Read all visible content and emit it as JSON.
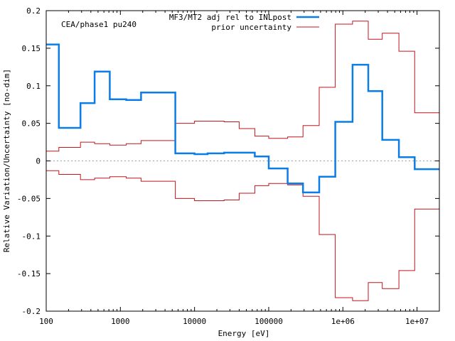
{
  "chart_data": {
    "type": "line",
    "step": true,
    "annotation": "CEA/phase1 pu240",
    "xlabel": "Energy [eV]",
    "ylabel": "Relative Variation/Uncertainty [no-dim]",
    "x_scale": "log",
    "xlim": [
      100,
      20000000
    ],
    "ylim": [
      -0.2,
      0.2
    ],
    "xticks": [
      {
        "value": 100,
        "label": "100"
      },
      {
        "value": 1000,
        "label": "1000"
      },
      {
        "value": 10000,
        "label": "10000"
      },
      {
        "value": 100000,
        "label": "100000"
      },
      {
        "value": 1000000,
        "label": "1e+06"
      },
      {
        "value": 10000000,
        "label": "1e+07"
      }
    ],
    "yticks": [
      {
        "value": 0.2,
        "label": "0.2"
      },
      {
        "value": 0.15,
        "label": "0.15"
      },
      {
        "value": 0.1,
        "label": "0.1"
      },
      {
        "value": 0.05,
        "label": "0.05"
      },
      {
        "value": 0,
        "label": "0"
      },
      {
        "value": -0.05,
        "label": "-0.05"
      },
      {
        "value": -0.1,
        "label": "-0.1"
      },
      {
        "value": -0.15,
        "label": "-0.15"
      },
      {
        "value": -0.2,
        "label": "-0.2"
      }
    ],
    "zero_line": true,
    "legend_position": "top-right",
    "bin_edges": [
      100,
      148,
      290,
      450,
      720,
      1200,
      1900,
      5500,
      10000,
      15000,
      25000,
      40000,
      65000,
      100000,
      180000,
      290000,
      480000,
      790000,
      1350000,
      2200000,
      3400000,
      5700000,
      9300000,
      20000000
    ],
    "series": [
      {
        "name": "MF3/MT2 adj rel to INLpost",
        "color": "#0a7ee6",
        "width": 2.5,
        "values": [
          0.155,
          0.044,
          0.077,
          0.119,
          0.082,
          0.081,
          0.091,
          0.01,
          0.009,
          0.01,
          0.011,
          0.011,
          0.006,
          -0.01,
          -0.03,
          -0.042,
          -0.021,
          0.052,
          0.128,
          0.093,
          0.028,
          0.005,
          -0.011
        ]
      },
      {
        "name": "prior uncertainty",
        "color": "#c4161c",
        "width": 1,
        "symmetric": true,
        "values": [
          0.013,
          0.018,
          0.025,
          0.023,
          0.021,
          0.023,
          0.027,
          0.05,
          0.053,
          0.053,
          0.052,
          0.043,
          0.033,
          0.03,
          0.032,
          0.047,
          0.098,
          0.182,
          0.186,
          0.162,
          0.17,
          0.146,
          0.064
        ]
      }
    ]
  }
}
